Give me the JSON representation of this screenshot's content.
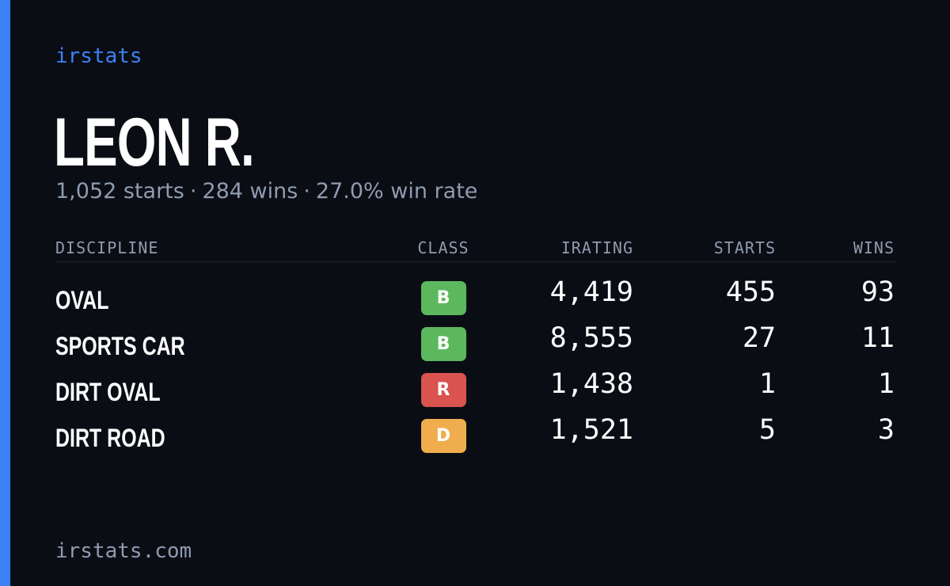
{
  "brand": "irstats",
  "driver": {
    "name": "LEON R.",
    "starts": "1,052 starts",
    "wins": "284 wins",
    "win_rate": "27.0% win rate",
    "separator": "·"
  },
  "table": {
    "headers": {
      "discipline": "DISCIPLINE",
      "class": "CLASS",
      "irating": "IRATING",
      "starts": "STARTS",
      "wins": "WINS"
    },
    "rows": [
      {
        "discipline": "OVAL",
        "class": "B",
        "class_color": "#5cb85c",
        "irating": "4,419",
        "starts": "455",
        "wins": "93"
      },
      {
        "discipline": "SPORTS CAR",
        "class": "B",
        "class_color": "#5cb85c",
        "irating": "8,555",
        "starts": "27",
        "wins": "11"
      },
      {
        "discipline": "DIRT OVAL",
        "class": "R",
        "class_color": "#d9534f",
        "irating": "1,438",
        "starts": "1",
        "wins": "1"
      },
      {
        "discipline": "DIRT ROAD",
        "class": "D",
        "class_color": "#f0ad4e",
        "irating": "1,521",
        "starts": "5",
        "wins": "3"
      }
    ]
  },
  "footer": "irstats.com",
  "colors": {
    "accent": "#3b82f6",
    "background": "#0a0d14",
    "muted_text": "#8f9bb0"
  }
}
